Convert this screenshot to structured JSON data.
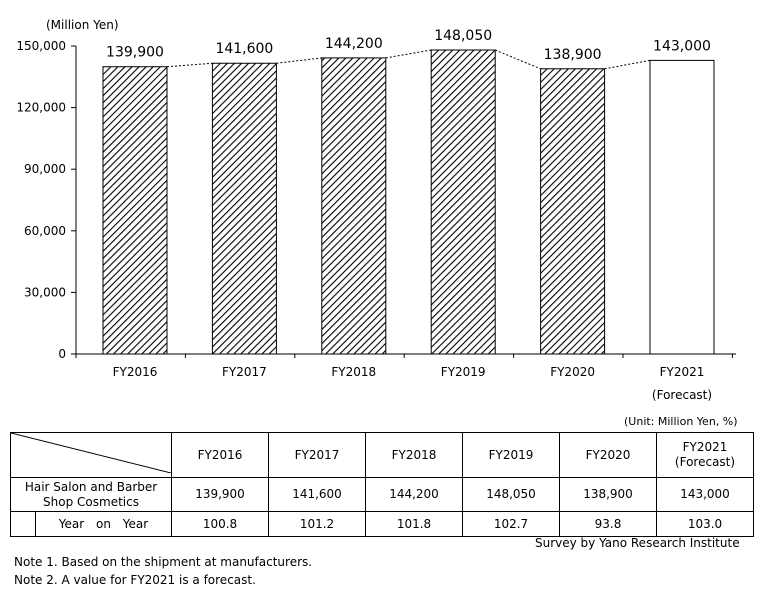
{
  "chart_data": {
    "type": "bar",
    "ylabel": "(Million Yen)",
    "ylim": [
      0,
      150000
    ],
    "yticks": [
      0,
      30000,
      60000,
      90000,
      120000,
      150000
    ],
    "ytick_labels": [
      "0",
      "30,000",
      "60,000",
      "90,000",
      "120,000",
      "150,000"
    ],
    "categories": [
      "FY2016",
      "FY2017",
      "FY2018",
      "FY2019",
      "FY2020",
      "FY2021"
    ],
    "category_sublabels": [
      "",
      "",
      "",
      "",
      "",
      "(Forecast)"
    ],
    "values": [
      139900,
      141600,
      144200,
      148050,
      138900,
      143000
    ],
    "value_labels": [
      "139,900",
      "141,600",
      "144,200",
      "148,050",
      "138,900",
      "143,000"
    ],
    "forecast_flags": [
      false,
      false,
      false,
      false,
      false,
      true
    ],
    "styles": {
      "actual_fill": "hatched",
      "forecast_fill": "#ffffff",
      "connector": "dotted"
    },
    "grid": false
  },
  "table": {
    "unit": "(Unit: Million Yen, %)",
    "headers": [
      "FY2016",
      "FY2017",
      "FY2018",
      "FY2019",
      "FY2020",
      "FY2021",
      "(Forecast)"
    ],
    "rows": [
      {
        "label": "Hair Salon and Barber Shop Cosmetics",
        "values": [
          "139,900",
          "141,600",
          "144,200",
          "148,050",
          "138,900",
          "143,000"
        ]
      },
      {
        "label": "Year on Year",
        "values": [
          "100.8",
          "101.2",
          "101.8",
          "102.7",
          "93.8",
          "103.0"
        ]
      }
    ]
  },
  "credit": "Survey by Yano Research Institute",
  "notes": [
    "Note 1.  Based on the shipment at manufacturers.",
    "Note 2.  A value for FY2021 is a forecast."
  ]
}
